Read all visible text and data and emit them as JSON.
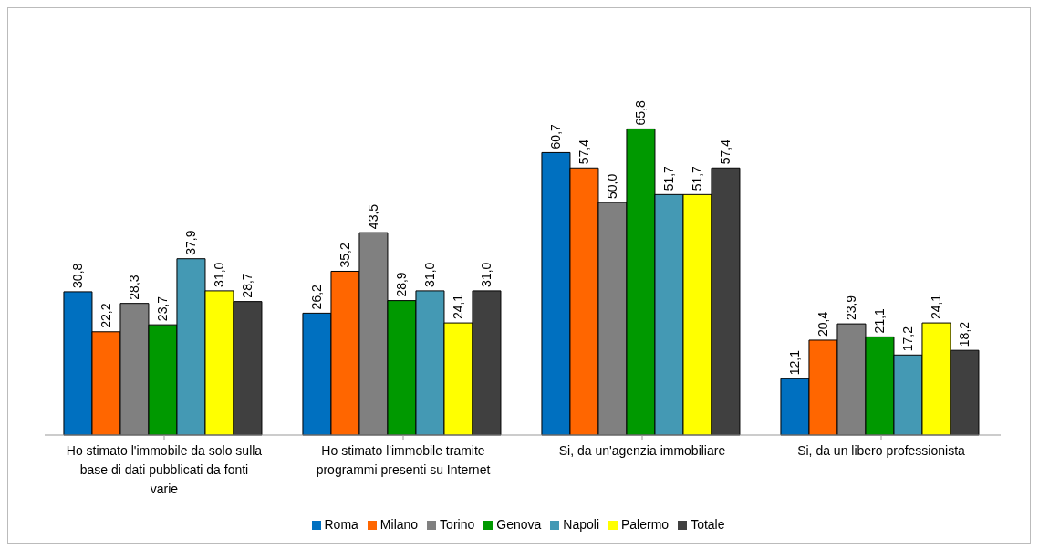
{
  "chart_data": {
    "type": "bar",
    "categories": [
      "Ho stimato l'immobile da solo sulla base di dati pubblicati da fonti varie",
      "Ho stimato l'immobile tramite programmi presenti su Internet",
      "Si, da un'agenzia immobiliare",
      "Si, da un libero professionista"
    ],
    "series": [
      {
        "name": "Roma",
        "color": "#0070c0",
        "values": [
          30.8,
          26.2,
          60.7,
          12.1
        ],
        "value_labels": [
          "30,8",
          "26,2",
          "60,7",
          "12,1"
        ]
      },
      {
        "name": "Milano",
        "color": "#ff6600",
        "values": [
          22.2,
          35.2,
          57.4,
          20.4
        ],
        "value_labels": [
          "22,2",
          "35,2",
          "57,4",
          "20,4"
        ]
      },
      {
        "name": "Torino",
        "color": "#808080",
        "values": [
          28.3,
          43.5,
          50.0,
          23.9
        ],
        "value_labels": [
          "28,3",
          "43,5",
          "50,0",
          "23,9"
        ]
      },
      {
        "name": "Genova",
        "color": "#009900",
        "values": [
          23.7,
          28.9,
          65.8,
          21.1
        ],
        "value_labels": [
          "23,7",
          "28,9",
          "65,8",
          "21,1"
        ]
      },
      {
        "name": "Napoli",
        "color": "#4499b4",
        "values": [
          37.9,
          31.0,
          51.7,
          17.2
        ],
        "value_labels": [
          "37,9",
          "31,0",
          "51,7",
          "17,2"
        ]
      },
      {
        "name": "Palermo",
        "color": "#ffff00",
        "values": [
          31.0,
          24.1,
          51.7,
          24.1
        ],
        "value_labels": [
          "31,0",
          "24,1",
          "51,7",
          "24,1"
        ]
      },
      {
        "name": "Totale",
        "color": "#404040",
        "values": [
          28.7,
          31.0,
          57.4,
          18.2
        ],
        "value_labels": [
          "28,7",
          "31,0",
          "57,4",
          "18,2"
        ]
      }
    ],
    "legend": "bottom",
    "tick_labels": "x",
    "grid": false
  }
}
